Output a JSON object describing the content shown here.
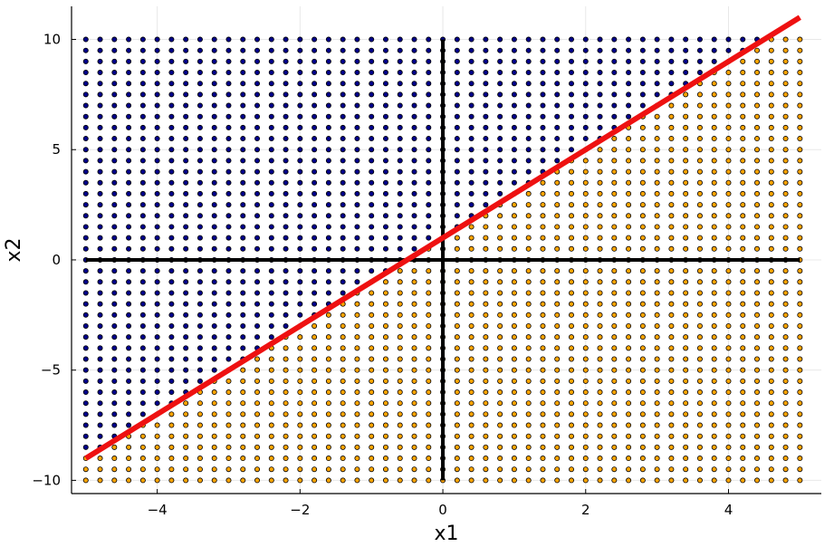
{
  "chart_data": {
    "type": "scatter",
    "title": "",
    "xlabel": "x1",
    "ylabel": "x2",
    "xlim": [
      -5.2,
      5.3
    ],
    "ylim": [
      -10.6,
      11.5
    ],
    "x_ticks": [
      -4,
      -2,
      0,
      2,
      4
    ],
    "x_tick_labels": [
      "−4",
      "−2",
      "0",
      "2",
      "4"
    ],
    "y_ticks": [
      -10,
      -5,
      0,
      5,
      10
    ],
    "y_tick_labels": [
      "−10",
      "−5",
      "0",
      "5",
      "10"
    ],
    "grid": true,
    "legend": "none",
    "grid_points": {
      "x_range": [
        -5,
        5
      ],
      "x_step": 0.2,
      "y_range": [
        -10,
        10
      ],
      "y_step": 0.5,
      "class_rule": "blue if x2 > 2*x1 + 1 else orange"
    },
    "series": [
      {
        "kind": "points",
        "class": "above",
        "color": "#00008b"
      },
      {
        "kind": "points",
        "class": "below",
        "color": "#ffa500"
      },
      {
        "kind": "line",
        "color": "#000000",
        "x": [
          -5,
          5
        ],
        "y": [
          0,
          0
        ]
      },
      {
        "kind": "line",
        "color": "#000000",
        "x": [
          0,
          0
        ],
        "y": [
          -10,
          10
        ]
      },
      {
        "kind": "line",
        "color": "#ee1111",
        "x": [
          -5,
          5
        ],
        "y": [
          -9,
          11
        ]
      }
    ]
  }
}
